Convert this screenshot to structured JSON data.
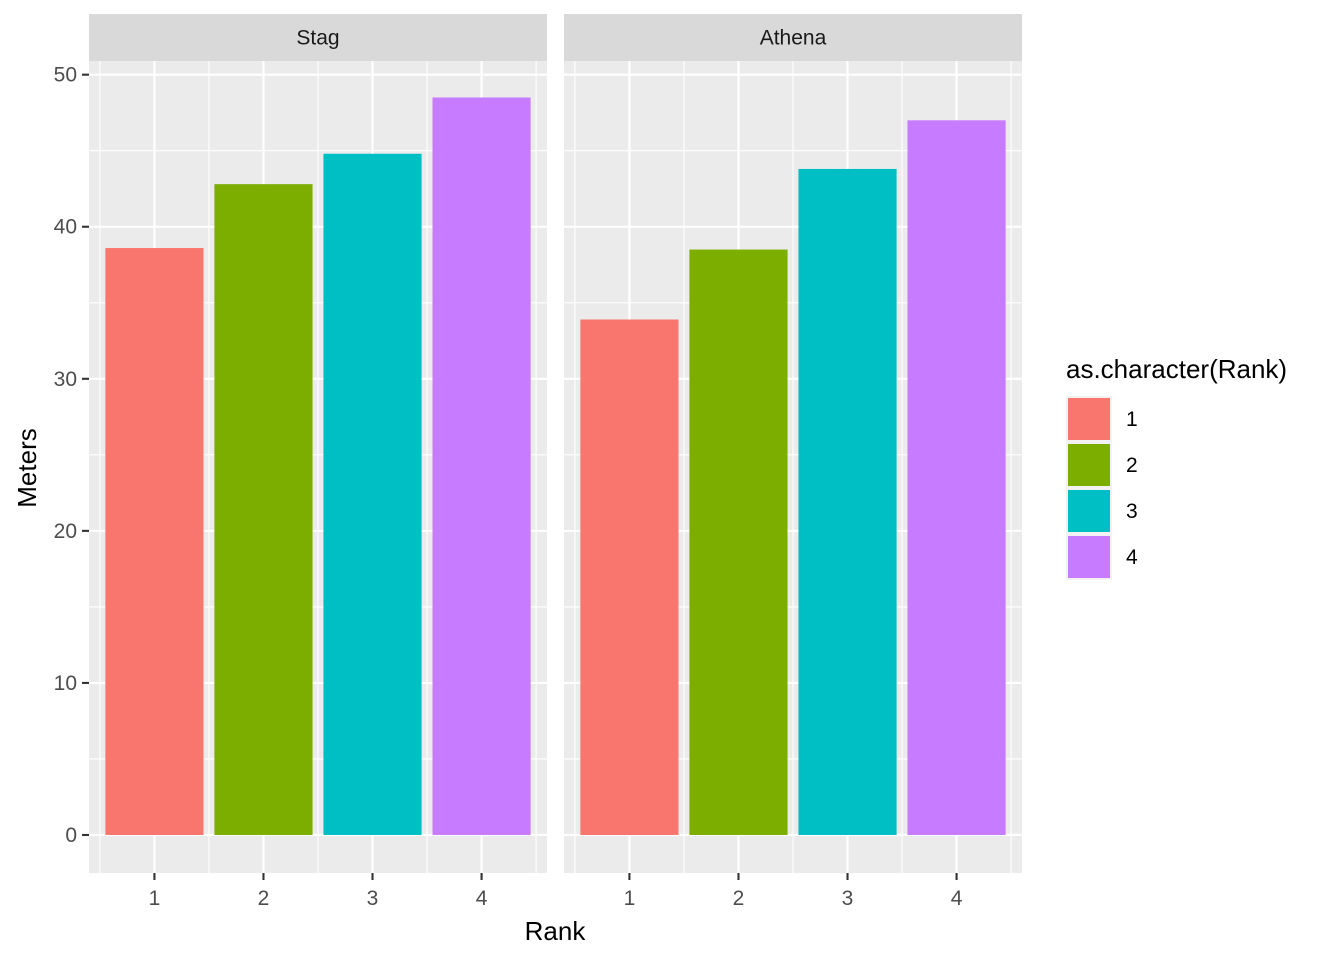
{
  "chart_data": {
    "type": "bar",
    "facets": [
      {
        "name": "Stag",
        "categories": [
          "1",
          "2",
          "3",
          "4"
        ],
        "values": [
          38.6,
          42.8,
          44.8,
          48.5
        ]
      },
      {
        "name": "Athena",
        "categories": [
          "1",
          "2",
          "3",
          "4"
        ],
        "values": [
          33.9,
          38.5,
          43.8,
          47.0
        ]
      }
    ],
    "xlabel": "Rank",
    "ylabel": "Meters",
    "ylim": [
      -2.5,
      50.9
    ],
    "yticks": [
      0,
      10,
      20,
      30,
      40,
      50
    ],
    "grid": true,
    "legend": {
      "title": "as.character(Rank)",
      "placement": "right",
      "entries": [
        {
          "label": "1",
          "color": "#F8766D"
        },
        {
          "label": "2",
          "color": "#7CAE00"
        },
        {
          "label": "3",
          "color": "#00BFC4"
        },
        {
          "label": "4",
          "color": "#C77CFF"
        }
      ]
    }
  }
}
